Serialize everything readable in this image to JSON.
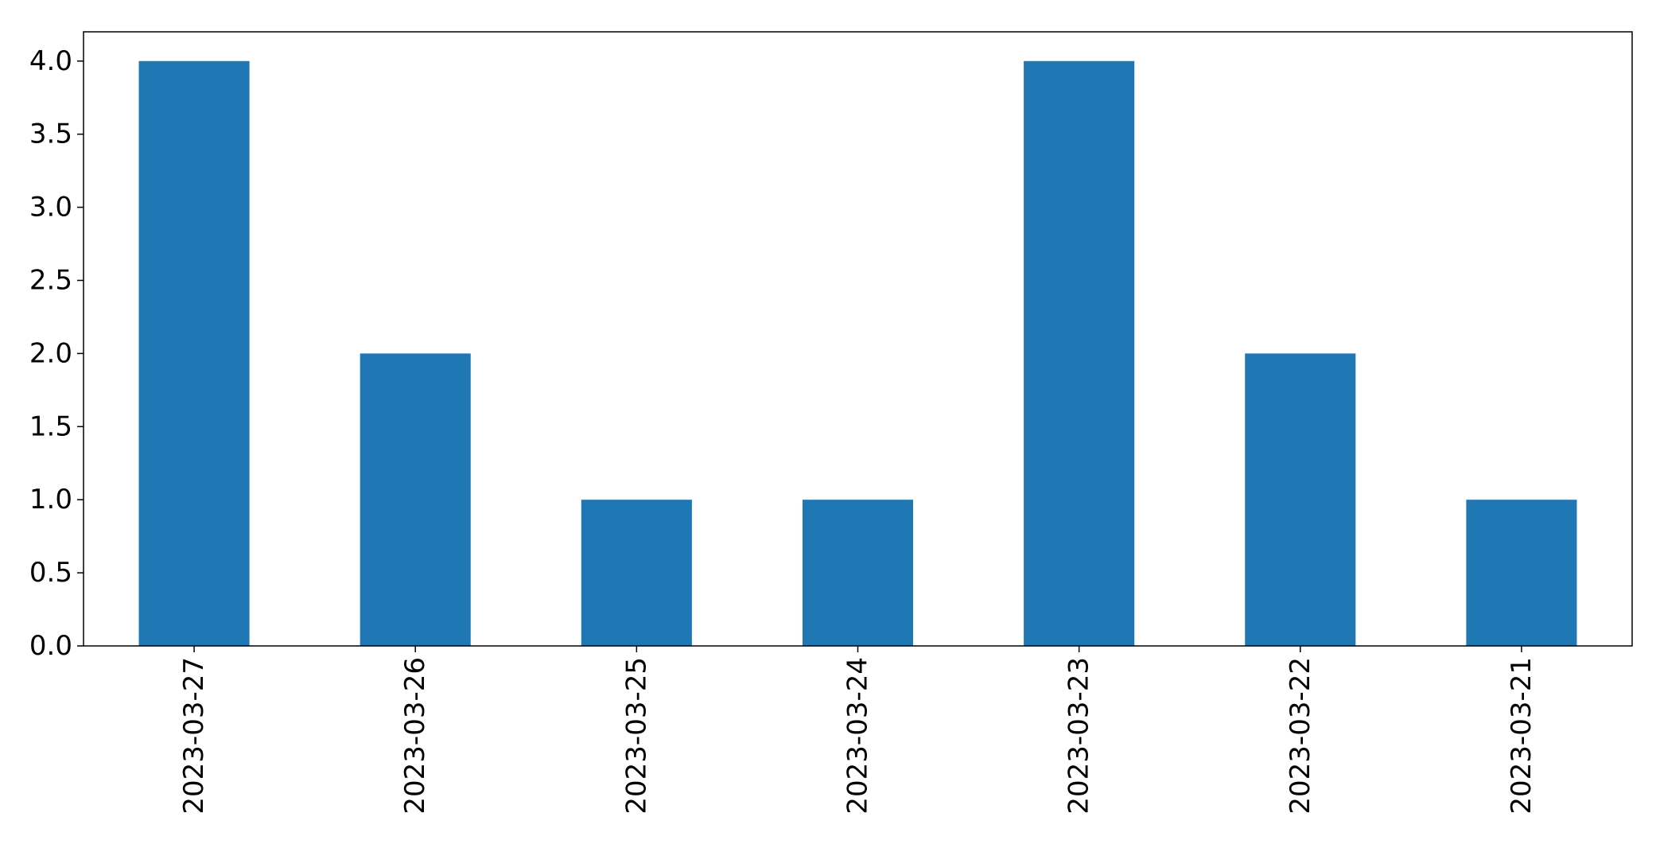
{
  "chart_data": {
    "type": "bar",
    "title": "",
    "xlabel": "",
    "ylabel": "",
    "categories": [
      "2023-03-27",
      "2023-03-26",
      "2023-03-25",
      "2023-03-24",
      "2023-03-23",
      "2023-03-22",
      "2023-03-21"
    ],
    "values": [
      4,
      2,
      1,
      1,
      4,
      2,
      1
    ],
    "ylim": [
      0,
      4.2
    ],
    "yticks": [
      0.0,
      0.5,
      1.0,
      1.5,
      2.0,
      2.5,
      3.0,
      3.5,
      4.0
    ],
    "ytick_labels": [
      "0.0",
      "0.5",
      "1.0",
      "1.5",
      "2.0",
      "2.5",
      "3.0",
      "3.5",
      "4.0"
    ],
    "xtick_rotation": "vertical",
    "grid": false,
    "legend": "none",
    "bar_color": "#1f77b4"
  }
}
